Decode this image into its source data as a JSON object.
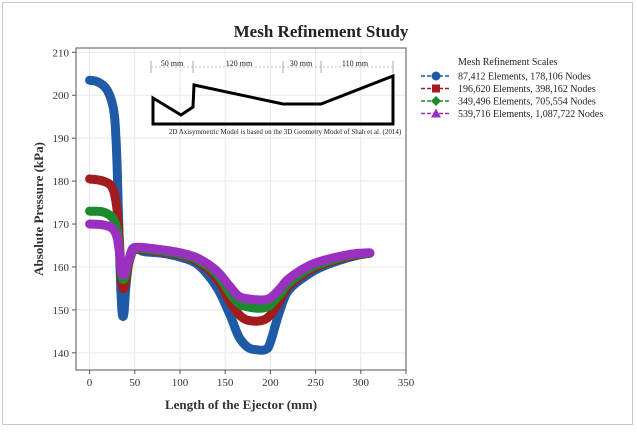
{
  "chart_data": {
    "type": "line",
    "title": "Mesh Refinement Study",
    "xlabel": "Length of the Ejector (mm)",
    "ylabel": "Absolute Pressure (kPa)",
    "xlim": [
      -15,
      350
    ],
    "ylim": [
      136,
      211
    ],
    "x_ticks": [
      "0",
      "50",
      "100",
      "150",
      "200",
      "250",
      "300",
      "350"
    ],
    "y_ticks": [
      "140",
      "150",
      "160",
      "170",
      "180",
      "190",
      "200",
      "210"
    ],
    "grid": true,
    "legend": {
      "title": "Mesh Refinement Scales",
      "placement": "right"
    },
    "series": [
      {
        "name": "87,412 Elements, 178,106 Nodes",
        "color": "#1f5aa6",
        "marker": "circle",
        "points": [
          [
            0,
            203.5
          ],
          [
            10,
            203
          ],
          [
            20,
            201
          ],
          [
            27,
            196
          ],
          [
            30,
            186
          ],
          [
            32,
            172
          ],
          [
            34,
            158
          ],
          [
            36,
            149.5
          ],
          [
            38,
            149.2
          ],
          [
            40,
            155
          ],
          [
            43,
            160.5
          ],
          [
            46,
            163.5
          ],
          [
            50,
            164.5
          ],
          [
            60,
            163.6
          ],
          [
            80,
            163.2
          ],
          [
            100,
            162.3
          ],
          [
            120,
            160.5
          ],
          [
            140,
            155.5
          ],
          [
            155,
            149
          ],
          [
            165,
            143.8
          ],
          [
            175,
            141.3
          ],
          [
            185,
            140.7
          ],
          [
            195,
            140.8
          ],
          [
            200,
            142.5
          ],
          [
            210,
            149.5
          ],
          [
            220,
            154.5
          ],
          [
            240,
            158
          ],
          [
            260,
            160.3
          ],
          [
            290,
            162.4
          ],
          [
            310,
            163.2
          ]
        ]
      },
      {
        "name": "196,620 Elements, 398,162 Nodes",
        "color": "#a11d1d",
        "marker": "square",
        "points": [
          [
            0,
            180.5
          ],
          [
            15,
            180
          ],
          [
            25,
            178.5
          ],
          [
            30,
            174
          ],
          [
            33,
            166
          ],
          [
            35,
            158
          ],
          [
            37,
            155
          ],
          [
            39,
            155.8
          ],
          [
            42,
            159.5
          ],
          [
            46,
            162.8
          ],
          [
            50,
            164
          ],
          [
            60,
            164
          ],
          [
            80,
            163.5
          ],
          [
            100,
            162.8
          ],
          [
            120,
            161.2
          ],
          [
            140,
            157.5
          ],
          [
            155,
            152
          ],
          [
            165,
            149
          ],
          [
            175,
            147.6
          ],
          [
            190,
            147.5
          ],
          [
            200,
            148.8
          ],
          [
            210,
            152
          ],
          [
            220,
            155.5
          ],
          [
            240,
            158.8
          ],
          [
            260,
            160.8
          ],
          [
            290,
            162.6
          ],
          [
            310,
            163.2
          ]
        ]
      },
      {
        "name": "349,496 Elements, 705,554 Nodes",
        "color": "#1b8a2f",
        "marker": "diamond",
        "points": [
          [
            0,
            173
          ],
          [
            15,
            172.8
          ],
          [
            25,
            171.5
          ],
          [
            30,
            169
          ],
          [
            33,
            164
          ],
          [
            35,
            159
          ],
          [
            37,
            157.2
          ],
          [
            39,
            157.6
          ],
          [
            42,
            160.2
          ],
          [
            46,
            163
          ],
          [
            50,
            164.2
          ],
          [
            60,
            164.2
          ],
          [
            80,
            163.7
          ],
          [
            100,
            163
          ],
          [
            120,
            161.6
          ],
          [
            140,
            158.5
          ],
          [
            155,
            154
          ],
          [
            165,
            151.5
          ],
          [
            175,
            150.7
          ],
          [
            190,
            150.4
          ],
          [
            200,
            151.2
          ],
          [
            210,
            153.5
          ],
          [
            220,
            156.2
          ],
          [
            240,
            159.3
          ],
          [
            260,
            161.1
          ],
          [
            290,
            162.8
          ],
          [
            310,
            163.2
          ]
        ]
      },
      {
        "name": "539,716 Elements, 1,087,722 Nodes",
        "color": "#9b30c0",
        "marker": "triangle",
        "points": [
          [
            0,
            170
          ],
          [
            15,
            169.8
          ],
          [
            25,
            169
          ],
          [
            30,
            167.2
          ],
          [
            33,
            163.5
          ],
          [
            35,
            159.5
          ],
          [
            37,
            158.2
          ],
          [
            39,
            158.6
          ],
          [
            42,
            160.8
          ],
          [
            46,
            163.3
          ],
          [
            50,
            164.5
          ],
          [
            60,
            164.5
          ],
          [
            80,
            164
          ],
          [
            100,
            163.3
          ],
          [
            120,
            162
          ],
          [
            140,
            159.2
          ],
          [
            155,
            155.5
          ],
          [
            165,
            153.2
          ],
          [
            175,
            152.6
          ],
          [
            190,
            152.3
          ],
          [
            200,
            152.8
          ],
          [
            210,
            154.8
          ],
          [
            220,
            157.2
          ],
          [
            240,
            160
          ],
          [
            260,
            161.6
          ],
          [
            290,
            163
          ],
          [
            310,
            163.3
          ]
        ]
      }
    ],
    "inset": {
      "dimension_labels": [
        "50 mm",
        "120 mm",
        "30 mm",
        "110 mm"
      ],
      "caption": "2D Axisymmetric Model is based on the 3D Geometry Model of Shah et al. (2014)"
    }
  }
}
